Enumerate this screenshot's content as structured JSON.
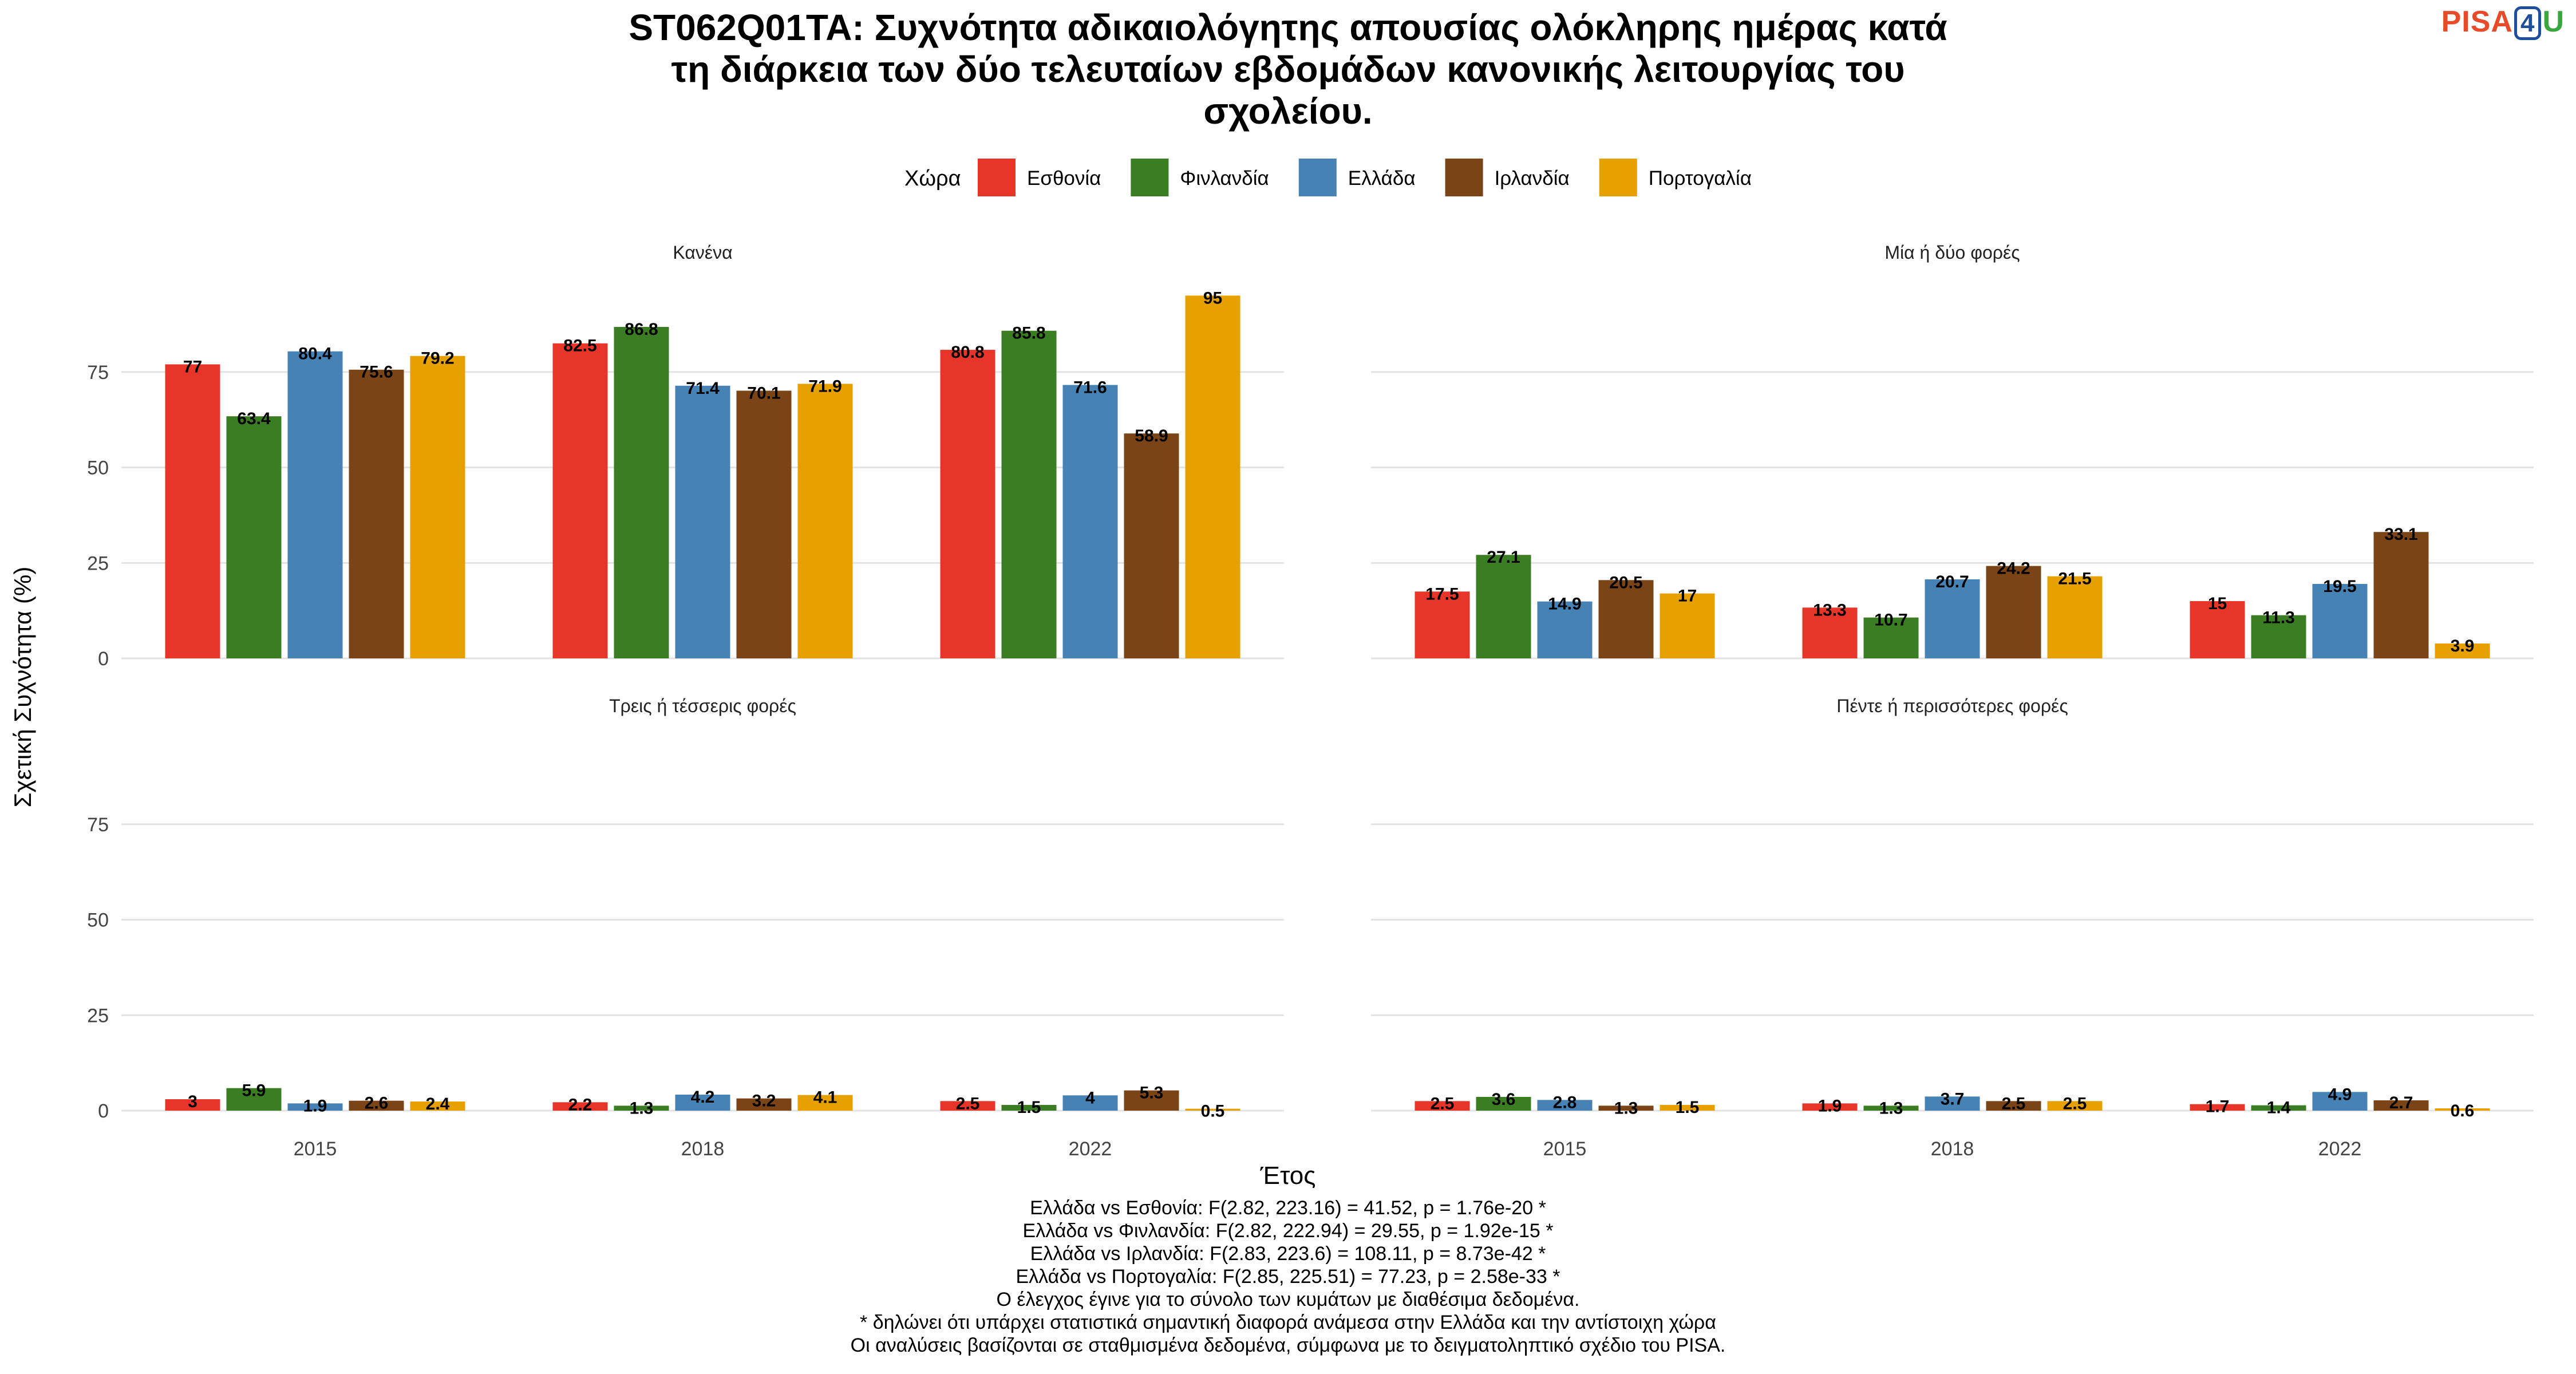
{
  "title_lines": [
    "ST062Q01TA: Συχνότητα αδικαιολόγητης απουσίας ολόκληρης ημέρας κατά",
    "τη διάρκεια των δύο τελευταίων εβδομάδων κανονικής λειτουργίας του",
    "σχολείου."
  ],
  "logo": {
    "part1": "PISA",
    "part2": "4",
    "part3": "U"
  },
  "chart_data": {
    "type": "bar",
    "title": "ST062Q01TA: Συχνότητα αδικαιολόγητης απουσίας ολόκληρης ημέρας κατά τη διάρκεια των δύο τελευταίων εβδομάδων κανονικής λειτουργίας του σχολείου.",
    "xlabel": "Έτος",
    "ylabel": "Σχετική Συχνότητα (%)",
    "ylim": [
      0,
      100
    ],
    "yticks": [
      0,
      25,
      50,
      75
    ],
    "grid": true,
    "legend_title": "Χώρα",
    "legend_position": "top",
    "categories": [
      "2015",
      "2018",
      "2022"
    ],
    "series": [
      {
        "name": "Εσθονία",
        "color": "#E8352A"
      },
      {
        "name": "Φινλανδία",
        "color": "#3A7D22"
      },
      {
        "name": "Ελλάδα",
        "color": "#4682B4"
      },
      {
        "name": "Ιρλανδία",
        "color": "#7B4417"
      },
      {
        "name": "Πορτογαλία",
        "color": "#E6A000"
      }
    ],
    "panels": [
      {
        "title": "Κανένα",
        "values": [
          [
            77,
            82.5,
            80.8
          ],
          [
            63.4,
            86.8,
            85.8
          ],
          [
            80.4,
            71.4,
            71.6
          ],
          [
            75.6,
            70.1,
            58.9
          ],
          [
            79.2,
            71.9,
            95
          ]
        ]
      },
      {
        "title": "Μία ή δύο φορές",
        "values": [
          [
            17.5,
            13.3,
            15
          ],
          [
            27.1,
            10.7,
            11.3
          ],
          [
            14.9,
            20.7,
            19.5
          ],
          [
            20.5,
            24.2,
            33.1
          ],
          [
            17,
            21.5,
            3.9
          ]
        ]
      },
      {
        "title": "Τρεις ή τέσσερις φορές",
        "values": [
          [
            3,
            2.2,
            2.5
          ],
          [
            5.9,
            1.3,
            1.5
          ],
          [
            1.9,
            4.2,
            4
          ],
          [
            2.6,
            3.2,
            5.3
          ],
          [
            2.4,
            4.1,
            0.5
          ]
        ]
      },
      {
        "title": "Πέντε ή περισσότερες φορές",
        "values": [
          [
            2.5,
            1.9,
            1.7
          ],
          [
            3.6,
            1.3,
            1.4
          ],
          [
            2.8,
            3.7,
            4.9
          ],
          [
            1.3,
            2.5,
            2.7
          ],
          [
            1.5,
            2.5,
            0.6
          ]
        ]
      }
    ]
  },
  "notes": [
    "Ελλάδα vs Εσθονία: F(2.82, 223.16) = 41.52, p = 1.76e-20 *",
    "Ελλάδα vs Φινλανδία: F(2.82, 222.94) = 29.55, p = 1.92e-15 *",
    "Ελλάδα vs Ιρλανδία: F(2.83, 223.6) = 108.11, p = 8.73e-42 *",
    "Ελλάδα vs Πορτογαλία: F(2.85, 225.51) = 77.23, p = 2.58e-33 *",
    "Ο έλεγχος έγινε για το σύνολο των κυμάτων με διαθέσιμα δεδομένα.",
    "* δηλώνει ότι υπάρχει στατιστικά σημαντική διαφορά ανάμεσα στην Ελλάδα και την αντίστοιχη χώρα",
    "Οι αναλύσεις βασίζονται σε σταθμισμένα δεδομένα, σύμφωνα με το δειγματοληπτικό σχέδιο του PISA."
  ]
}
